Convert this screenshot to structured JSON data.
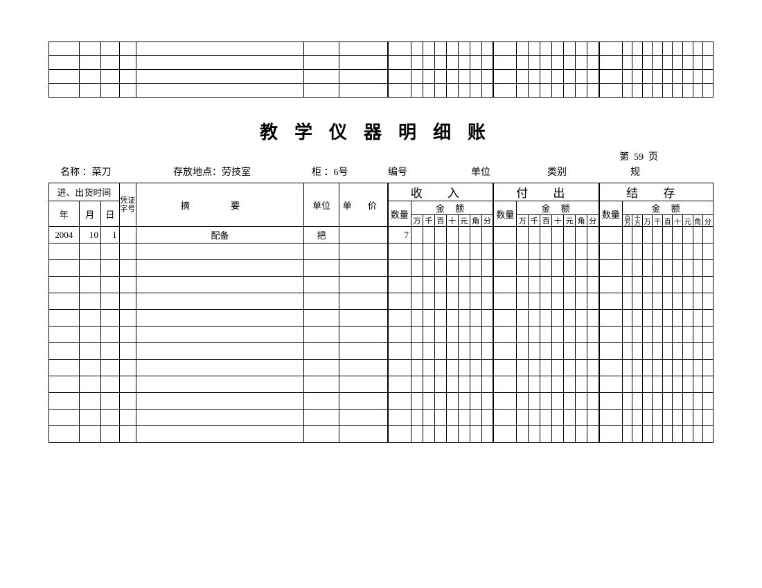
{
  "title": "教学仪器明细账",
  "page_label_prefix": "第",
  "page_number": "59",
  "page_label_suffix": "页",
  "info": {
    "name_label": "名称 ：",
    "name_value": "菜刀",
    "location_label": "存放地点：",
    "location_value": "劳技室",
    "cabinet_label": "柜 ：",
    "cabinet_value": "6号",
    "code_label": "编号",
    "code_value": "",
    "unit_label": "单位",
    "unit_value": "",
    "category_label": "类别",
    "category_value": "",
    "spec_label": "规"
  },
  "headers": {
    "time": "进、出货时间",
    "year": "年",
    "month": "月",
    "day": "日",
    "voucher": "凭证字号",
    "summary": "摘    要",
    "unit": "单位",
    "price": "单 价",
    "income": "收  入",
    "outgo": "付  出",
    "balance": "结  存",
    "qty": "数量",
    "amount": "金   额",
    "d_bwan": "百万",
    "d_swan": "十万",
    "d_wan": "万",
    "d_qian": "千",
    "d_bai": "百",
    "d_shi": "十",
    "d_yuan": "元",
    "d_jiao": "角",
    "d_fen": "分"
  },
  "rows": [
    {
      "year": "2004",
      "month": "10",
      "day": "1",
      "voucher": "",
      "summary": "配备",
      "unit": "把",
      "price": "",
      "in_qty": "7"
    },
    {},
    {},
    {},
    {},
    {},
    {},
    {},
    {},
    {},
    {},
    {},
    {}
  ],
  "top_fragment_rows": 4
}
